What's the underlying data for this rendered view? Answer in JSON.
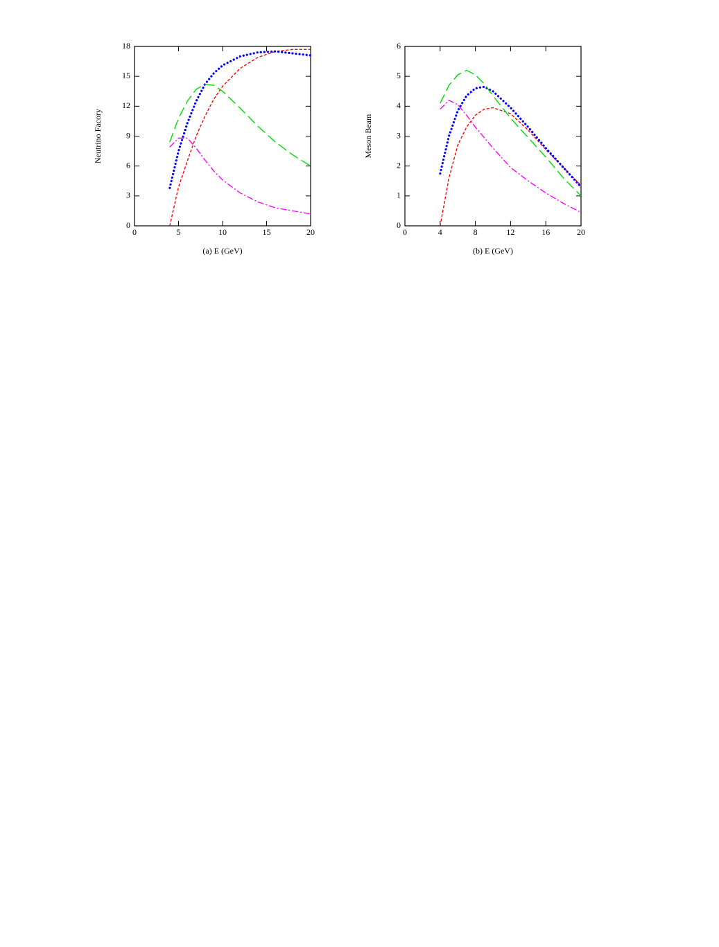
{
  "chart_data": [
    {
      "type": "line",
      "xlabel": "(a)  E (GeV)",
      "ylabel": "Neutrino Facory",
      "x": [
        4,
        5,
        6,
        7,
        8,
        9,
        10,
        12,
        14,
        16,
        18,
        20
      ],
      "xlim": [
        0,
        20
      ],
      "xticks": [
        0,
        5,
        10,
        15,
        20
      ],
      "ylim": [
        0,
        18
      ],
      "yticks": [
        0,
        3,
        6,
        9,
        12,
        15,
        18
      ],
      "series": [
        {
          "color": "#ff0000",
          "style": "short-dash",
          "values": [
            0,
            3.9,
            6.5,
            9,
            11,
            12.7,
            14,
            15.8,
            16.9,
            17.5,
            17.7,
            17.7
          ]
        },
        {
          "color": "#0000ff",
          "style": "dotted",
          "values": [
            3.8,
            7.5,
            10.3,
            12.5,
            14.2,
            15.3,
            16.1,
            17,
            17.4,
            17.5,
            17.3,
            17.1
          ]
        },
        {
          "color": "#00dd00",
          "style": "long-dash",
          "values": [
            8.4,
            10.8,
            12.5,
            13.7,
            14.2,
            14.1,
            13.5,
            11.8,
            10,
            8.4,
            7.1,
            6
          ]
        },
        {
          "color": "#ff00ff",
          "style": "dash-dot",
          "values": [
            7.9,
            8.8,
            8.8,
            7.8,
            6.6,
            5.5,
            4.6,
            3.3,
            2.4,
            1.8,
            1.5,
            1.2
          ]
        }
      ]
    },
    {
      "type": "line",
      "xlabel": "(b)  E (GeV)",
      "ylabel": "Meson Beam",
      "x": [
        4,
        5,
        6,
        7,
        8,
        9,
        10,
        12,
        14,
        16,
        18,
        20
      ],
      "xlim": [
        0,
        20
      ],
      "xticks": [
        0,
        4,
        8,
        12,
        16,
        20
      ],
      "ylim": [
        0,
        6
      ],
      "yticks": [
        0,
        1,
        2,
        3,
        4,
        5,
        6
      ],
      "series": [
        {
          "color": "#ff0000",
          "style": "short-dash",
          "values": [
            0,
            1.6,
            2.7,
            3.3,
            3.7,
            3.9,
            3.95,
            3.75,
            3.2,
            2.55,
            1.95,
            1.35
          ]
        },
        {
          "color": "#0000ff",
          "style": "dotted",
          "values": [
            1.75,
            3.0,
            3.85,
            4.35,
            4.6,
            4.65,
            4.5,
            3.95,
            3.3,
            2.6,
            1.95,
            1.3
          ]
        },
        {
          "color": "#00dd00",
          "style": "long-dash",
          "values": [
            4.1,
            4.7,
            5.05,
            5.2,
            5.05,
            4.75,
            4.35,
            3.6,
            2.95,
            2.3,
            1.6,
            1.0
          ]
        },
        {
          "color": "#ff00ff",
          "style": "dash-dot",
          "values": [
            3.9,
            4.2,
            4.05,
            3.7,
            3.3,
            2.95,
            2.6,
            1.95,
            1.5,
            1.1,
            0.75,
            0.45
          ]
        }
      ]
    }
  ]
}
